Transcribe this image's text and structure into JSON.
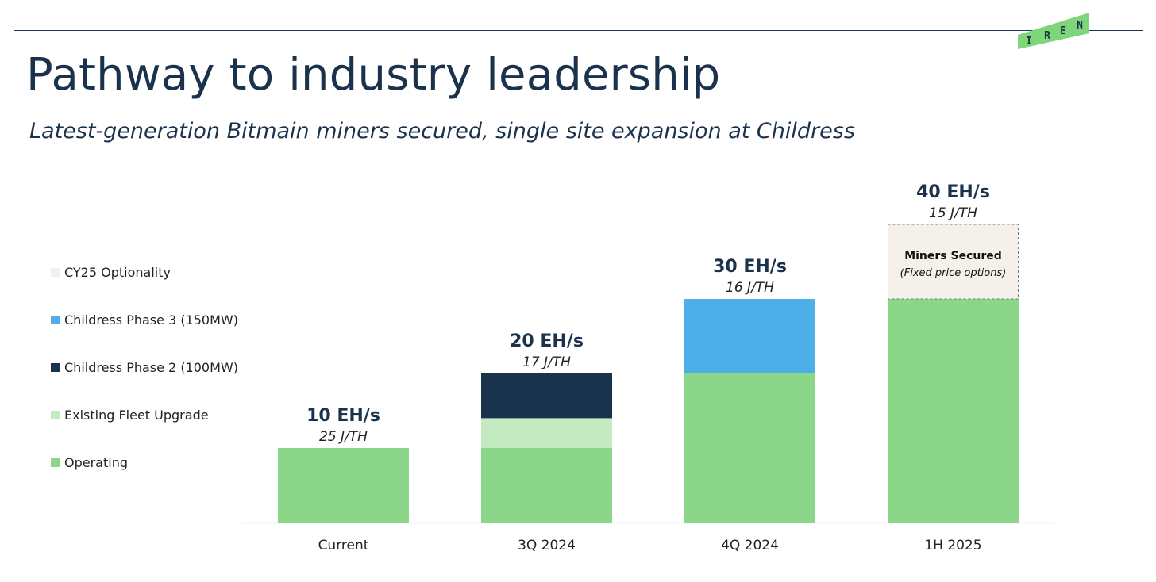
{
  "title": "Pathway to industry leadership",
  "subtitle": "Latest-generation Bitmain miners secured, single site expansion at Childress",
  "logo": {
    "letters": [
      "I",
      "R",
      "E",
      "N"
    ],
    "color": "#7fd67a"
  },
  "legend": [
    {
      "label": "CY25 Optionality",
      "color": "#f5f1ea"
    },
    {
      "label": "Childress Phase 3 (150MW)",
      "color": "#4eaee8"
    },
    {
      "label": "Childress Phase 2 (100MW)",
      "color": "#1a334c"
    },
    {
      "label": "Existing Fleet Upgrade",
      "color": "#c4eac2"
    },
    {
      "label": "Operating",
      "color": "#8cd68a"
    }
  ],
  "chart_data": {
    "type": "bar",
    "stacked": true,
    "categories": [
      "Current",
      "3Q 2024",
      "4Q 2024",
      "1H 2025"
    ],
    "ylim": [
      0,
      40
    ],
    "series": [
      {
        "name": "Operating",
        "color": "#8cd68a",
        "values": [
          10,
          10,
          20,
          30
        ]
      },
      {
        "name": "Existing Fleet Upgrade",
        "color": "#c4eac2",
        "values": [
          0,
          4,
          0,
          0
        ]
      },
      {
        "name": "Childress Phase 2 (100MW)",
        "color": "#1a334c",
        "values": [
          0,
          6,
          0,
          0
        ]
      },
      {
        "name": "Childress Phase 3 (150MW)",
        "color": "#4eaee8",
        "values": [
          0,
          0,
          10,
          0
        ]
      },
      {
        "name": "CY25 Optionality",
        "color": "#f5f1ea",
        "values": [
          0,
          0,
          0,
          10
        ],
        "dashed": true
      }
    ],
    "totals": [
      "10 EH/s",
      "20 EH/s",
      "30 EH/s",
      "40 EH/s"
    ],
    "efficiency": [
      "25 J/TH",
      "17 J/TH",
      "16 J/TH",
      "15 J/TH"
    ],
    "annotation": {
      "category": "1H 2025",
      "title": "Miners Secured",
      "subtitle": "(Fixed price options)"
    }
  }
}
